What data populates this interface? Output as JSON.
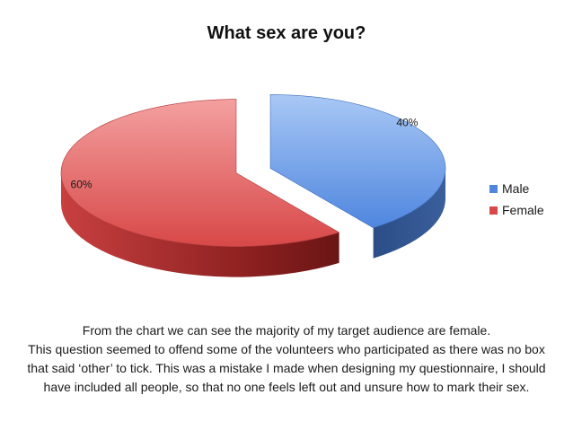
{
  "chart_data": {
    "type": "pie",
    "title": "What sex are you?",
    "categories": [
      "Male",
      "Female"
    ],
    "values": [
      40,
      60
    ],
    "labels": [
      "40%",
      "60%"
    ],
    "colors": [
      "#5b8fe0",
      "#e05050"
    ],
    "legend_position": "right",
    "style": "3d-exploded"
  },
  "caption": [
    "From the chart we can see the majority of my target audience are female.",
    "This question seemed to offend some of the volunteers who participated as there was no box that said ‘other’ to tick. This was a mistake I made when designing my questionnaire, I should have included all people, so that no one feels left out and unsure how to mark their sex."
  ]
}
